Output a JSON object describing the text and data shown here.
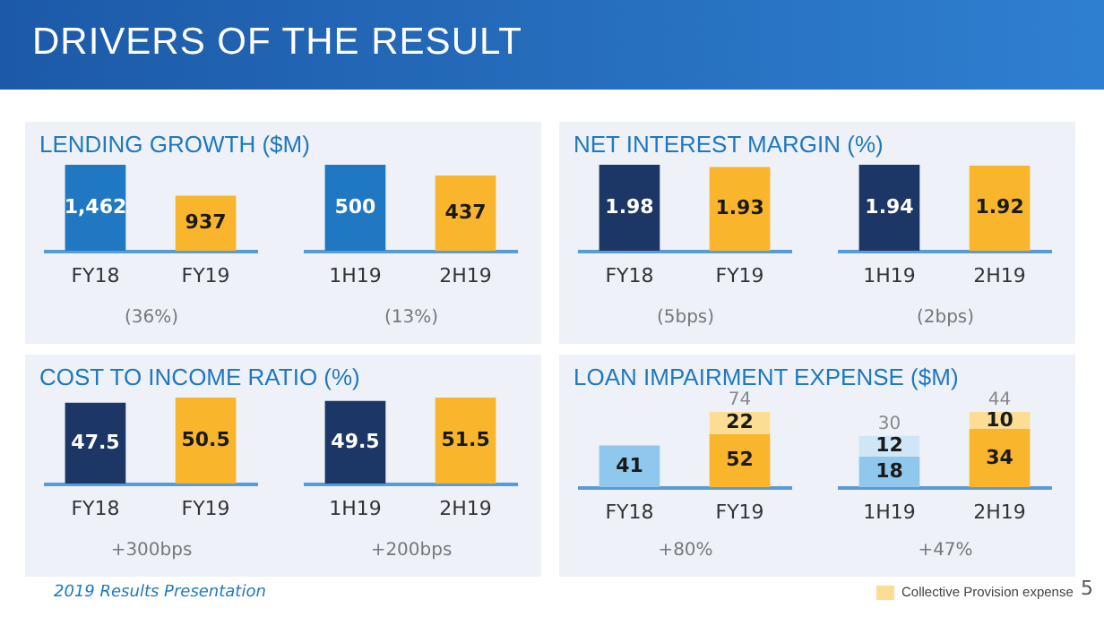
{
  "chart_data": [
    {
      "type": "other",
      "title": "DRIVERS OF THE RESULT",
      "annotations": [
        "2019 Results Presentation",
        "5"
      ]
    },
    {
      "type": "bar",
      "title": "LENDING GROWTH ($M)",
      "categories": [
        "FY18",
        "FY19"
      ],
      "values": [
        1462,
        937
      ],
      "colors": [
        "#1f78c1",
        "#f9b62c"
      ],
      "value_labels": [
        "1,462",
        "937"
      ],
      "annotations": [
        "(36%)"
      ]
    },
    {
      "type": "bar",
      "categories": [
        "1H19",
        "2H19"
      ],
      "values": [
        500,
        437
      ],
      "colors": [
        "#1f78c1",
        "#f9b62c"
      ],
      "value_labels": [
        "500",
        "437"
      ],
      "annotations": [
        "(13%)"
      ]
    },
    {
      "type": "bar",
      "title": "NET INTEREST MARGIN (%)",
      "categories": [
        "FY18",
        "FY19"
      ],
      "values": [
        1.98,
        1.93
      ],
      "colors": [
        "#1c3766",
        "#f9b62c"
      ],
      "value_labels": [
        "1.98",
        "1.93"
      ],
      "annotations": [
        "(5bps)"
      ]
    },
    {
      "type": "bar",
      "categories": [
        "1H19",
        "2H19"
      ],
      "values": [
        1.94,
        1.92
      ],
      "colors": [
        "#1c3766",
        "#f9b62c"
      ],
      "value_labels": [
        "1.94",
        "1.92"
      ],
      "annotations": [
        "(2bps)"
      ]
    },
    {
      "type": "bar",
      "title": "COST TO INCOME RATIO (%)",
      "categories": [
        "FY18",
        "FY19"
      ],
      "values": [
        47.5,
        50.5
      ],
      "colors": [
        "#1c3766",
        "#f9b62c"
      ],
      "value_labels": [
        "47.5",
        "50.5"
      ],
      "annotations": [
        "+300bps"
      ]
    },
    {
      "type": "bar",
      "categories": [
        "1H19",
        "2H19"
      ],
      "values": [
        49.5,
        51.5
      ],
      "colors": [
        "#1c3766",
        "#f9b62c"
      ],
      "value_labels": [
        "49.5",
        "51.5"
      ],
      "annotations": [
        "+200bps"
      ]
    },
    {
      "type": "bar",
      "title": "LOAN IMPAIRMENT EXPENSE ($M)",
      "categories": [
        "FY18",
        "FY19"
      ],
      "stacked": true,
      "series": [
        {
          "colors": [
            "#8fc8ec",
            "#f9b62c"
          ],
          "values": [
            41,
            52
          ],
          "value_labels": [
            "41",
            "52"
          ]
        },
        {
          "colors": [
            "#fbdd94",
            "#fbdd94"
          ],
          "values": [
            null,
            22
          ],
          "value_labels": [
            null,
            "22"
          ]
        }
      ],
      "totals": [
        null,
        "74"
      ],
      "annotations": [
        "+80%"
      ]
    },
    {
      "type": "bar",
      "categories": [
        "1H19",
        "2H19"
      ],
      "stacked": true,
      "legend": "bottom right",
      "series": [
        {
          "colors": [
            "#8fc8ec",
            "#f9b62c"
          ],
          "values": [
            18,
            34
          ],
          "value_labels": [
            "18",
            "34"
          ]
        },
        {
          "name": "Collective Provision expense",
          "colors": [
            "#cfe6f6",
            "#fbdd94"
          ],
          "values": [
            12,
            10
          ],
          "value_labels": [
            "12",
            "10"
          ]
        }
      ],
      "totals": [
        "30",
        "44"
      ],
      "annotations": [
        "+47%"
      ]
    }
  ]
}
